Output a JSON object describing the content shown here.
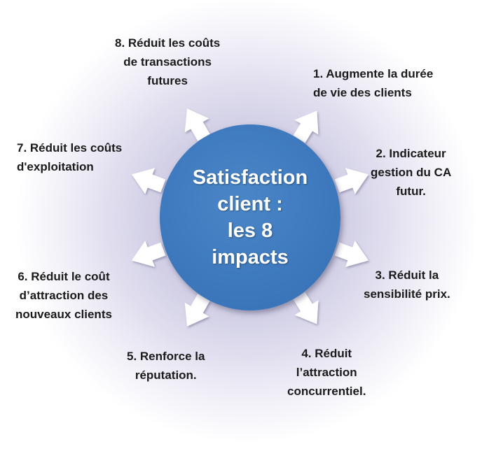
{
  "center": {
    "text": "Satisfaction\nclient :\nles  8\nimpacts"
  },
  "items": [
    {
      "text": "1.  Augmente la durée\nde vie des clients"
    },
    {
      "text": "2. Indicateur\ngestion du CA\nfutur."
    },
    {
      "text": "3. Réduit la\nsensibilité prix."
    },
    {
      "text": "4. Réduit\nl’attraction\nconcurrentiel."
    },
    {
      "text": "5. Renforce la\nréputation."
    },
    {
      "text": "6. Réduit le coût\nd’attraction des\nnouveaux clients"
    },
    {
      "text": "7. Réduit les coûts\nd'exploitation"
    },
    {
      "text": "8. Réduit les coûts\nde transactions\nfutures"
    }
  ],
  "colors": {
    "hub": "#3d78bd",
    "arrow_fill": "#ffffff",
    "halo": "#c9c6e0",
    "text": "#1a1a1a"
  },
  "icons": {
    "arrow": "arrow-outward-icon"
  }
}
